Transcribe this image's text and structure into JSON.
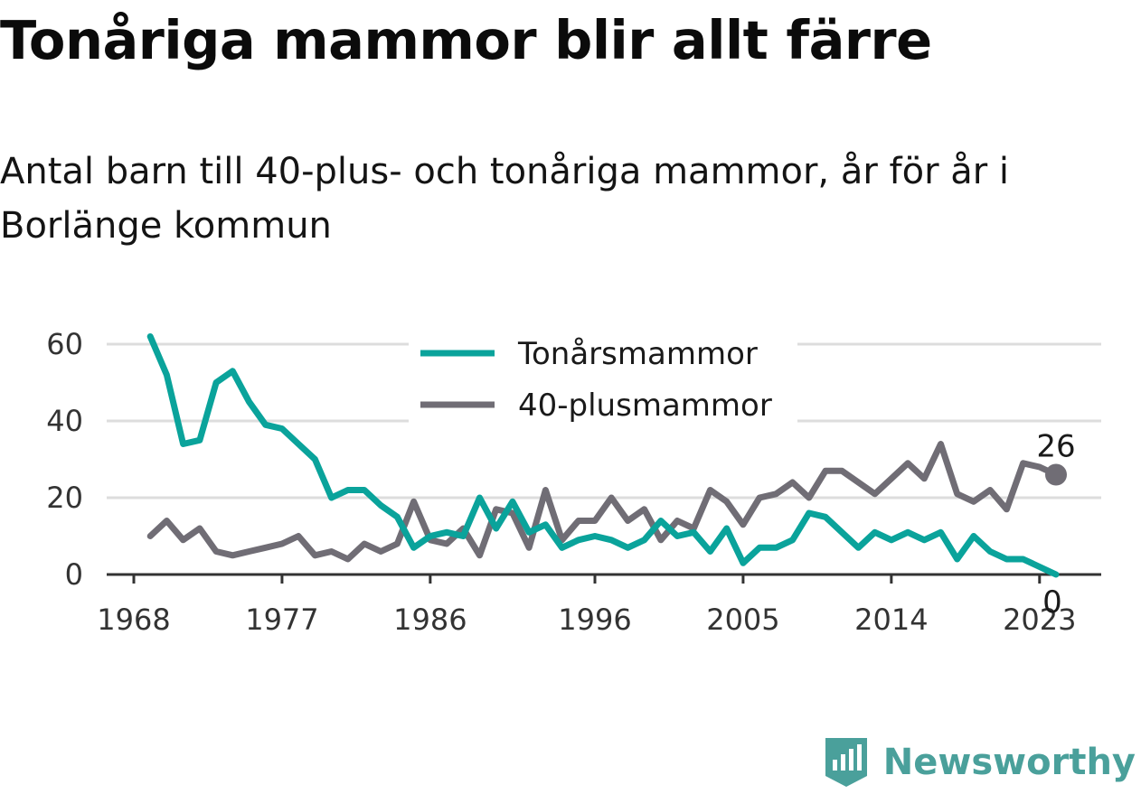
{
  "title": "Tonåriga mammor blir allt färre",
  "subtitle": "Antal barn till 40-plus- och tonåriga mammor, år för år i Borlänge kommun",
  "brand": {
    "name": "Newsworthy"
  },
  "colors": {
    "teen": "#0aa39b",
    "plus40": "#706d75",
    "grid": "#dddddd",
    "axis": "#333333"
  },
  "chart_data": {
    "type": "line",
    "title": "Tonåriga mammor blir allt färre",
    "subtitle": "Antal barn till 40-plus- och tonåriga mammor, år för år i Borlänge kommun",
    "xlim": [
      1968,
      2024
    ],
    "ylim": [
      0,
      60
    ],
    "y_ticks": [
      0,
      20,
      40,
      60
    ],
    "x_ticks": [
      1968,
      1977,
      1986,
      1996,
      2005,
      2014,
      2023
    ],
    "grid": true,
    "legend_position": "top-center",
    "x": [
      1969,
      1970,
      1971,
      1972,
      1973,
      1974,
      1975,
      1976,
      1977,
      1978,
      1979,
      1980,
      1981,
      1982,
      1983,
      1984,
      1985,
      1986,
      1987,
      1988,
      1989,
      1990,
      1991,
      1992,
      1993,
      1994,
      1995,
      1996,
      1997,
      1998,
      1999,
      2000,
      2001,
      2002,
      2003,
      2004,
      2005,
      2006,
      2007,
      2008,
      2009,
      2010,
      2011,
      2012,
      2013,
      2014,
      2015,
      2016,
      2017,
      2018,
      2019,
      2020,
      2021,
      2022,
      2023,
      2024
    ],
    "series": [
      {
        "name": "Tonårsmammor",
        "color": "#0aa39b",
        "values": [
          62,
          52,
          34,
          35,
          50,
          53,
          45,
          39,
          38,
          34,
          30,
          20,
          22,
          22,
          18,
          15,
          7,
          10,
          11,
          10,
          20,
          12,
          19,
          11,
          13,
          7,
          9,
          10,
          9,
          7,
          9,
          14,
          10,
          11,
          6,
          12,
          3,
          7,
          7,
          9,
          16,
          15,
          11,
          7,
          11,
          9,
          11,
          9,
          11,
          4,
          10,
          6,
          4,
          4,
          2,
          0
        ],
        "end_label": "0"
      },
      {
        "name": "40-plusmammor",
        "color": "#706d75",
        "values": [
          10,
          14,
          9,
          12,
          6,
          5,
          6,
          7,
          8,
          10,
          5,
          6,
          4,
          8,
          6,
          8,
          19,
          9,
          8,
          12,
          5,
          17,
          16,
          7,
          22,
          9,
          14,
          14,
          20,
          14,
          17,
          9,
          14,
          12,
          22,
          19,
          13,
          20,
          21,
          24,
          20,
          27,
          27,
          24,
          21,
          25,
          29,
          25,
          34,
          21,
          19,
          22,
          17,
          29,
          28,
          26
        ],
        "end_label": "26"
      }
    ]
  }
}
